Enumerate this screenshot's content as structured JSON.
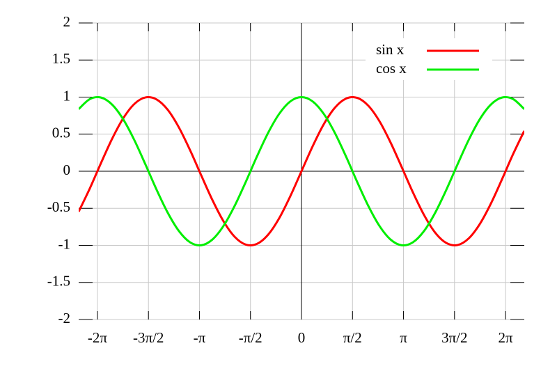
{
  "chart_data": {
    "type": "line",
    "x": [
      -6.86,
      -6.517,
      -6.174,
      -5.831,
      -5.488,
      -5.145,
      -4.802,
      -4.459,
      -4.116,
      -3.773,
      -3.43,
      -3.087,
      -2.744,
      -2.401,
      -2.058,
      -1.715,
      -1.372,
      -1.029,
      -0.686,
      -0.343,
      0,
      0.343,
      0.686,
      1.029,
      1.372,
      1.715,
      2.058,
      2.401,
      2.744,
      3.087,
      3.43,
      3.773,
      4.116,
      4.459,
      4.802,
      5.145,
      5.488,
      5.831,
      6.174,
      6.517,
      6.86
    ],
    "series": [
      {
        "name": "sin x",
        "color": "#ff0000",
        "values": [
          -0.545,
          -0.232,
          0.109,
          0.437,
          0.714,
          0.908,
          0.996,
          0.968,
          0.828,
          0.59,
          0.284,
          -0.055,
          -0.387,
          -0.675,
          -0.884,
          -0.99,
          -0.98,
          -0.857,
          -0.634,
          -0.336,
          0,
          0.336,
          0.634,
          0.857,
          0.98,
          0.99,
          0.884,
          0.675,
          0.387,
          0.055,
          -0.284,
          -0.59,
          -0.828,
          -0.968,
          -0.996,
          -0.908,
          -0.714,
          -0.437,
          -0.109,
          0.232,
          0.545
        ]
      },
      {
        "name": "cos x",
        "color": "#00ee00",
        "values": [
          0.838,
          0.973,
          0.994,
          0.899,
          0.7,
          0.419,
          0.089,
          -0.251,
          -0.561,
          -0.807,
          -0.959,
          -0.999,
          -0.922,
          -0.738,
          -0.468,
          -0.144,
          0.198,
          0.516,
          0.774,
          0.942,
          1,
          0.942,
          0.774,
          0.516,
          0.198,
          -0.144,
          -0.468,
          -0.738,
          -0.922,
          -0.999,
          -0.959,
          -0.807,
          -0.561,
          -0.251,
          0.089,
          0.419,
          0.7,
          0.899,
          0.994,
          0.973,
          0.838
        ]
      }
    ],
    "xlim": [
      -6.86,
      6.86
    ],
    "xticks": [
      {
        "value": -6.283,
        "label": "-2π"
      },
      {
        "value": -4.712,
        "label": "-3π/2"
      },
      {
        "value": -3.142,
        "label": "-π"
      },
      {
        "value": -1.571,
        "label": "-π/2"
      },
      0,
      {
        "value": 1.571,
        "label": "π/2"
      },
      {
        "value": 3.142,
        "label": "π"
      },
      {
        "value": 4.712,
        "label": "3π/2"
      },
      {
        "value": 6.283,
        "label": "2π"
      }
    ],
    "ylim": [
      -2,
      2
    ],
    "yticks": [
      -2,
      -1.5,
      -1,
      -0.5,
      0,
      0.5,
      1,
      1.5,
      2
    ],
    "grid": true,
    "axes_at_zero": true,
    "legend": "top-right"
  }
}
